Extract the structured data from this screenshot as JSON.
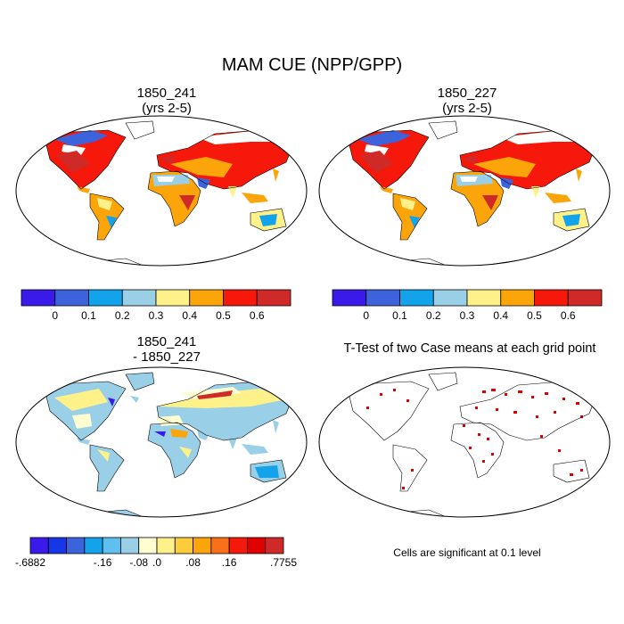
{
  "figure_title": "MAM CUE (NPP/GPP)",
  "panels": [
    {
      "id": "tl",
      "title_line1": "1850_241",
      "title_line2": "(yrs 2-5)",
      "map": "cue"
    },
    {
      "id": "tr",
      "title_line1": "1850_227",
      "title_line2": "(yrs 2-5)",
      "map": "cue"
    },
    {
      "id": "bl",
      "title_line1": "1850_241",
      "title_line2": "- 1850_227",
      "map": "diff"
    },
    {
      "id": "br",
      "title_line1": "T-Test of two Case means at each grid point",
      "title_line2": "",
      "map": "ttest"
    }
  ],
  "colorbar_cue": {
    "colors": [
      "#3a1ae8",
      "#3c63dc",
      "#13a3eb",
      "#99cfe7",
      "#fef18a",
      "#fba50a",
      "#f6180a",
      "#cf2a27"
    ],
    "tick_labels": [
      "0",
      "0.1",
      "0.2",
      "0.3",
      "0.4",
      "0.5",
      "0.6"
    ]
  },
  "colorbar_diff": {
    "colors": [
      "#3a1ae8",
      "#1736e8",
      "#3c63dc",
      "#13a3eb",
      "#5fc0ef",
      "#99cfe7",
      "#fefed0",
      "#fef18a",
      "#fdcd3c",
      "#fba50a",
      "#f9701a",
      "#f6180a",
      "#e00000",
      "#cf2a27"
    ],
    "tick_labels": [
      "-.6882",
      "-.16",
      "-.08",
      ".0",
      ".08",
      ".16",
      ".7755"
    ]
  },
  "significance_note": "Cells are significant at 0.1 level"
}
